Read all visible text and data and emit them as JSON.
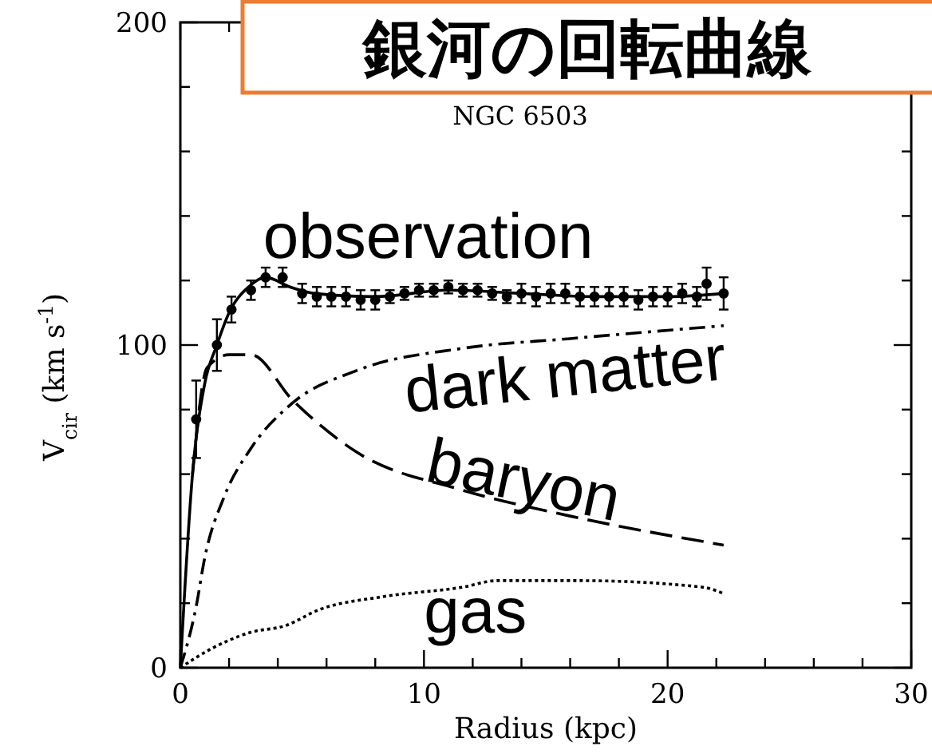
{
  "chart_data": {
    "type": "line",
    "title": "銀河の回転曲線",
    "subtitle": "NGC 6503",
    "xlabel": "Radius (kpc)",
    "ylabel": "V$_{cir}$ (km s$^{-1}$)",
    "xlim": [
      0,
      30
    ],
    "ylim": [
      0,
      200
    ],
    "xticks": [
      0,
      {
        "value": 2,
        "label": null
      },
      {
        "value": 4,
        "label": null
      },
      {
        "value": 6,
        "label": null
      },
      {
        "value": 8,
        "label": null
      },
      10,
      {
        "value": 12,
        "label": null
      },
      {
        "value": 14,
        "label": null
      },
      {
        "value": 16,
        "label": null
      },
      {
        "value": 18,
        "label": null
      },
      20,
      {
        "value": 22,
        "label": null
      },
      {
        "value": 24,
        "label": null
      },
      {
        "value": 26,
        "label": null
      },
      {
        "value": 28,
        "label": null
      },
      30
    ],
    "yticks": [
      0,
      {
        "value": 20,
        "label": null
      },
      {
        "value": 40,
        "label": null
      },
      {
        "value": 60,
        "label": null
      },
      {
        "value": 80,
        "label": null
      },
      100,
      {
        "value": 120,
        "label": null
      },
      {
        "value": 140,
        "label": null
      },
      {
        "value": 160,
        "label": null
      },
      {
        "value": 180,
        "label": null
      },
      200
    ],
    "series": [
      {
        "name": "observation",
        "type": "scatter",
        "color": "#000000",
        "marker": "circle",
        "x": [
          0.65,
          1.5,
          2.1,
          2.9,
          3.5,
          4.2,
          5.0,
          5.6,
          6.2,
          6.8,
          7.4,
          8.0,
          8.6,
          9.2,
          9.8,
          10.4,
          11.0,
          11.6,
          12.2,
          12.8,
          13.4,
          14.0,
          14.6,
          15.2,
          15.8,
          16.4,
          17.0,
          17.6,
          18.2,
          18.8,
          19.4,
          20.0,
          20.6,
          21.2,
          21.6,
          22.3
        ],
        "values": [
          77,
          100,
          111,
          117,
          121,
          121,
          116,
          115,
          115,
          115,
          114,
          114,
          115,
          116,
          117,
          117,
          118,
          117,
          117,
          116,
          115,
          116,
          115,
          116,
          116,
          115,
          115,
          115,
          115,
          114,
          115,
          115,
          116,
          115,
          119,
          116
        ],
        "errors": [
          12,
          8,
          4,
          3,
          3,
          3,
          3,
          3,
          3,
          3,
          3,
          3,
          2,
          2,
          2,
          2,
          2,
          2,
          2,
          2,
          2,
          3,
          3,
          3,
          3,
          3,
          3,
          3,
          3,
          3,
          3,
          3,
          3,
          3,
          5,
          5
        ]
      },
      {
        "color": "#000000",
        "line_style": "solid",
        "x": [
          0,
          0.5,
          1,
          1.5,
          2,
          2.8,
          3.5,
          4.5,
          5.5,
          8,
          11,
          14,
          17,
          20,
          22.3
        ],
        "values": [
          0,
          60,
          88,
          100,
          110,
          118,
          121,
          118,
          116,
          115,
          117,
          116,
          115,
          115,
          116
        ]
      },
      {
        "name": "dark matter",
        "type": "line",
        "color": "#000000",
        "line_style": "dashdot",
        "x": [
          0,
          0.65,
          1,
          1.8,
          2.9,
          4.6,
          7.2,
          11.6,
          16,
          22.3
        ],
        "values": [
          0,
          19,
          34,
          53,
          68,
          82,
          92,
          99,
          102,
          106
        ]
      },
      {
        "name": "baryon",
        "type": "line",
        "color": "#000000",
        "line_style": "dashed",
        "x": [
          0.5,
          1.1,
          2,
          2.9,
          4.6,
          7.2,
          11.6,
          16,
          22.3
        ],
        "values": [
          60,
          93,
          97,
          97,
          83,
          67,
          55,
          47,
          38
        ]
      },
      {
        "name": "gas",
        "type": "line",
        "color": "#000000",
        "line_style": "dotted",
        "x": [
          0,
          1.3,
          2.9,
          4.3,
          5.7,
          8.3,
          11.6,
          13,
          16.4,
          21.4,
          22.3
        ],
        "values": [
          0,
          6,
          11,
          13,
          18,
          22,
          25,
          27,
          27,
          25,
          23
        ]
      }
    ]
  }
}
